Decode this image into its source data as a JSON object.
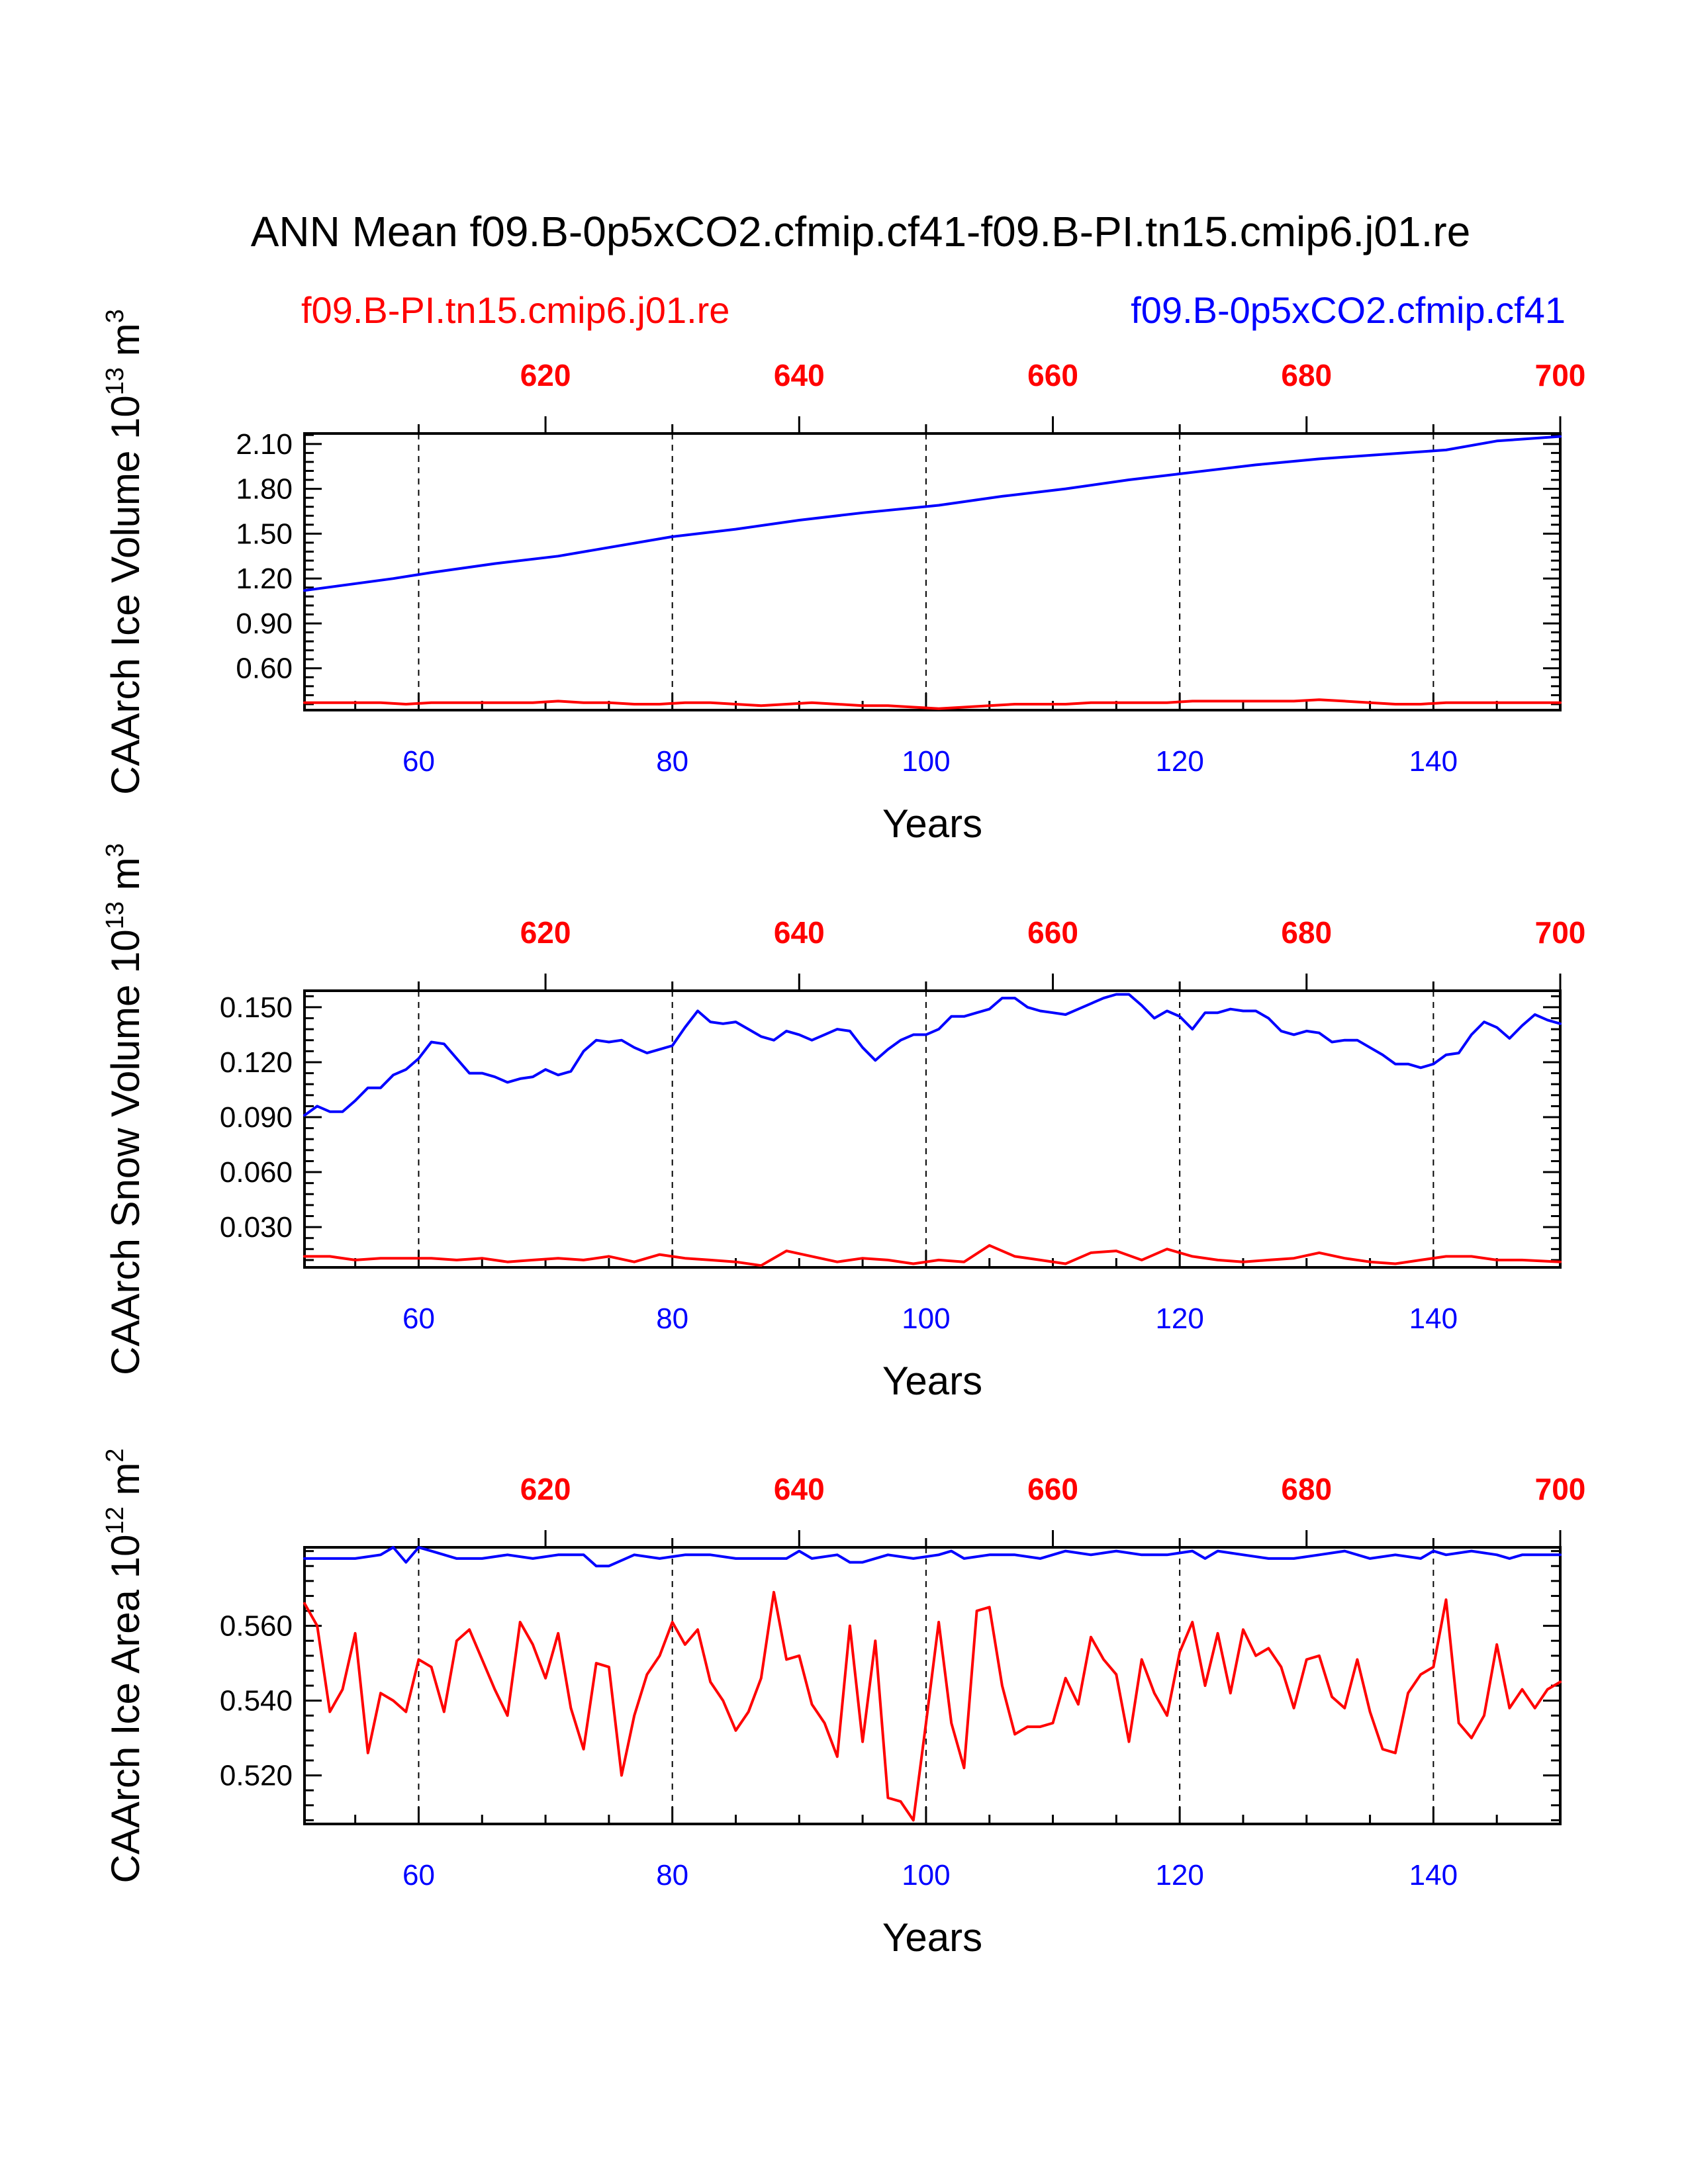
{
  "title": "ANN Mean f09.B-0p5xCO2.cfmip.cf41-f09.B-PI.tn15.cmip6.j01.re",
  "legend": {
    "left": "f09.B-PI.tn15.cmip6.j01.re",
    "right": "f09.B-0p5xCO2.cfmip.cf41"
  },
  "colors": {
    "control": "#ff0000",
    "experiment": "#0000ff",
    "axis": "#000000",
    "background": "#ffffff"
  },
  "chart_data": [
    {
      "type": "line",
      "name": "ice-volume",
      "ylabel": "CAArch Ice Volume 10^13 m^3",
      "ylabel_base": "CAArch Ice Volume 10",
      "ylabel_exp": "13",
      "ylabel_unit": " m",
      "ylabel_unit_exp": "3",
      "xlabel": "Years",
      "xlim": [
        51,
        150
      ],
      "ylim": [
        0.32,
        2.17
      ],
      "x_ticks": [
        60,
        80,
        100,
        120,
        140
      ],
      "x_tick_labels": [
        "60",
        "80",
        "100",
        "120",
        "140"
      ],
      "top_ticks": [
        620,
        640,
        660,
        680,
        700
      ],
      "top_tick_labels": [
        "620",
        "640",
        "660",
        "680",
        "700"
      ],
      "top_xlim": [
        601,
        700
      ],
      "y_ticks": [
        0.6,
        0.9,
        1.2,
        1.5,
        1.8,
        2.1
      ],
      "y_tick_labels": [
        "0.60",
        "0.90",
        "1.20",
        "1.50",
        "1.80",
        "2.10"
      ],
      "series": [
        {
          "name": "f09.B-0p5xCO2.cfmip.cf41",
          "color": "#0000ff",
          "x": [
            51,
            58,
            61,
            66,
            71,
            80,
            85,
            90,
            95,
            101,
            106,
            111,
            116,
            121,
            126,
            131,
            136,
            141,
            145,
            150
          ],
          "y": [
            1.12,
            1.2,
            1.24,
            1.3,
            1.35,
            1.48,
            1.53,
            1.59,
            1.64,
            1.69,
            1.75,
            1.8,
            1.86,
            1.91,
            1.96,
            2.0,
            2.03,
            2.06,
            2.12,
            2.15
          ]
        },
        {
          "name": "f09.B-PI.tn15.cmip6.j01.re",
          "color": "#ff0000",
          "x": [
            51,
            53,
            55,
            57,
            59,
            61,
            63,
            65,
            67,
            69,
            71,
            73,
            75,
            77,
            79,
            81,
            83,
            85,
            87,
            89,
            91,
            93,
            95,
            97,
            99,
            101,
            103,
            105,
            107,
            109,
            111,
            113,
            115,
            117,
            119,
            121,
            123,
            125,
            127,
            129,
            131,
            133,
            135,
            137,
            139,
            141,
            143,
            145,
            147,
            150
          ],
          "y": [
            0.37,
            0.37,
            0.37,
            0.37,
            0.36,
            0.37,
            0.37,
            0.37,
            0.37,
            0.37,
            0.38,
            0.37,
            0.37,
            0.36,
            0.36,
            0.37,
            0.37,
            0.36,
            0.35,
            0.36,
            0.37,
            0.36,
            0.35,
            0.35,
            0.34,
            0.33,
            0.34,
            0.35,
            0.36,
            0.36,
            0.36,
            0.37,
            0.37,
            0.37,
            0.37,
            0.38,
            0.38,
            0.38,
            0.38,
            0.38,
            0.39,
            0.38,
            0.37,
            0.36,
            0.36,
            0.37,
            0.37,
            0.37,
            0.37,
            0.37
          ]
        }
      ]
    },
    {
      "type": "line",
      "name": "snow-volume",
      "ylabel": "CAArch Snow Volume 10^13 m^3",
      "ylabel_base": "CAArch Snow Volume 10",
      "ylabel_exp": "13",
      "ylabel_unit": " m",
      "ylabel_unit_exp": "3",
      "xlabel": "Years",
      "xlim": [
        51,
        150
      ],
      "ylim": [
        0.008,
        0.159
      ],
      "x_ticks": [
        60,
        80,
        100,
        120,
        140
      ],
      "x_tick_labels": [
        "60",
        "80",
        "100",
        "120",
        "140"
      ],
      "top_ticks": [
        620,
        640,
        660,
        680,
        700
      ],
      "top_tick_labels": [
        "620",
        "640",
        "660",
        "680",
        "700"
      ],
      "top_xlim": [
        601,
        700
      ],
      "y_ticks": [
        0.03,
        0.06,
        0.09,
        0.12,
        0.15
      ],
      "y_tick_labels": [
        "0.030",
        "0.060",
        "0.090",
        "0.120",
        "0.150"
      ],
      "series": [
        {
          "name": "f09.B-0p5xCO2.cfmip.cf41",
          "color": "#0000ff",
          "x": [
            51,
            52,
            53,
            54,
            55,
            56,
            57,
            58,
            59,
            60,
            61,
            62,
            63,
            64,
            65,
            66,
            67,
            68,
            69,
            70,
            71,
            72,
            73,
            74,
            75,
            76,
            77,
            78,
            79,
            80,
            81,
            82,
            83,
            84,
            85,
            86,
            87,
            88,
            89,
            90,
            91,
            92,
            93,
            94,
            95,
            96,
            97,
            98,
            99,
            100,
            101,
            102,
            103,
            104,
            105,
            106,
            107,
            108,
            109,
            110,
            111,
            112,
            113,
            114,
            115,
            116,
            117,
            118,
            119,
            120,
            121,
            122,
            123,
            124,
            125,
            126,
            127,
            128,
            129,
            130,
            131,
            132,
            133,
            134,
            135,
            136,
            137,
            138,
            139,
            140,
            141,
            142,
            143,
            144,
            145,
            146,
            147,
            148,
            149,
            150
          ],
          "y": [
            0.091,
            0.096,
            0.093,
            0.093,
            0.099,
            0.106,
            0.106,
            0.113,
            0.116,
            0.122,
            0.131,
            0.13,
            0.122,
            0.114,
            0.114,
            0.112,
            0.109,
            0.111,
            0.112,
            0.116,
            0.113,
            0.115,
            0.126,
            0.132,
            0.131,
            0.132,
            0.128,
            0.125,
            0.127,
            0.129,
            0.139,
            0.148,
            0.142,
            0.141,
            0.142,
            0.138,
            0.134,
            0.132,
            0.137,
            0.135,
            0.132,
            0.135,
            0.138,
            0.137,
            0.128,
            0.121,
            0.127,
            0.132,
            0.135,
            0.135,
            0.138,
            0.145,
            0.145,
            0.147,
            0.149,
            0.155,
            0.155,
            0.15,
            0.148,
            0.147,
            0.146,
            0.149,
            0.152,
            0.155,
            0.157,
            0.157,
            0.151,
            0.144,
            0.148,
            0.145,
            0.138,
            0.147,
            0.147,
            0.149,
            0.148,
            0.148,
            0.144,
            0.137,
            0.135,
            0.137,
            0.136,
            0.131,
            0.132,
            0.132,
            0.128,
            0.124,
            0.119,
            0.119,
            0.117,
            0.119,
            0.124,
            0.125,
            0.135,
            0.142,
            0.139,
            0.133,
            0.14,
            0.146,
            0.143,
            0.141
          ]
        },
        {
          "name": "f09.B-PI.tn15.cmip6.j01.re",
          "color": "#ff0000",
          "x": [
            51,
            53,
            55,
            57,
            59,
            61,
            63,
            65,
            67,
            69,
            71,
            73,
            75,
            77,
            79,
            81,
            83,
            85,
            87,
            89,
            91,
            93,
            95,
            97,
            99,
            101,
            103,
            105,
            107,
            109,
            111,
            113,
            115,
            117,
            119,
            121,
            123,
            125,
            127,
            129,
            131,
            133,
            135,
            137,
            139,
            141,
            143,
            145,
            147,
            150
          ],
          "y": [
            0.014,
            0.014,
            0.012,
            0.013,
            0.013,
            0.013,
            0.012,
            0.013,
            0.011,
            0.012,
            0.013,
            0.012,
            0.014,
            0.011,
            0.015,
            0.013,
            0.012,
            0.011,
            0.009,
            0.017,
            0.014,
            0.011,
            0.013,
            0.012,
            0.01,
            0.012,
            0.011,
            0.02,
            0.014,
            0.012,
            0.01,
            0.016,
            0.017,
            0.012,
            0.018,
            0.014,
            0.012,
            0.011,
            0.012,
            0.013,
            0.016,
            0.013,
            0.011,
            0.01,
            0.012,
            0.014,
            0.014,
            0.012,
            0.012,
            0.011
          ]
        }
      ]
    },
    {
      "type": "line",
      "name": "ice-area",
      "ylabel": "CAArch Ice Area 10^12 m^2",
      "ylabel_base": "CAArch Ice Area 10",
      "ylabel_exp": "12",
      "ylabel_unit": " m",
      "ylabel_unit_exp": "2",
      "xlabel": "Years",
      "xlim": [
        51,
        150
      ],
      "ylim": [
        0.507,
        0.581
      ],
      "x_ticks": [
        60,
        80,
        100,
        120,
        140
      ],
      "x_tick_labels": [
        "60",
        "80",
        "100",
        "120",
        "140"
      ],
      "top_ticks": [
        620,
        640,
        660,
        680,
        700
      ],
      "top_tick_labels": [
        "620",
        "640",
        "660",
        "680",
        "700"
      ],
      "top_xlim": [
        601,
        700
      ],
      "y_ticks": [
        0.52,
        0.54,
        0.56
      ],
      "y_tick_labels": [
        "0.520",
        "0.540",
        "0.560"
      ],
      "series": [
        {
          "name": "f09.B-0p5xCO2.cfmip.cf41",
          "color": "#0000ff",
          "x": [
            51,
            53,
            55,
            57,
            58,
            59,
            60,
            61,
            63,
            65,
            67,
            69,
            71,
            73,
            74,
            75,
            77,
            79,
            81,
            83,
            85,
            87,
            89,
            90,
            91,
            93,
            94,
            95,
            97,
            99,
            101,
            102,
            103,
            105,
            107,
            109,
            111,
            113,
            115,
            117,
            119,
            121,
            122,
            123,
            125,
            127,
            129,
            131,
            133,
            135,
            137,
            139,
            140,
            141,
            143,
            145,
            146,
            147,
            149,
            150
          ],
          "y": [
            0.578,
            0.578,
            0.578,
            0.579,
            0.581,
            0.577,
            0.581,
            0.58,
            0.578,
            0.578,
            0.579,
            0.578,
            0.579,
            0.579,
            0.576,
            0.576,
            0.579,
            0.578,
            0.579,
            0.579,
            0.578,
            0.578,
            0.578,
            0.58,
            0.578,
            0.579,
            0.577,
            0.577,
            0.579,
            0.578,
            0.579,
            0.58,
            0.578,
            0.579,
            0.579,
            0.578,
            0.58,
            0.579,
            0.58,
            0.579,
            0.579,
            0.58,
            0.578,
            0.58,
            0.579,
            0.578,
            0.578,
            0.579,
            0.58,
            0.578,
            0.579,
            0.578,
            0.58,
            0.579,
            0.58,
            0.579,
            0.578,
            0.579,
            0.579,
            0.579
          ]
        },
        {
          "name": "f09.B-PI.tn15.cmip6.j01.re",
          "color": "#ff0000",
          "x": [
            51,
            52,
            53,
            54,
            55,
            56,
            57,
            58,
            59,
            60,
            61,
            62,
            63,
            64,
            65,
            66,
            67,
            68,
            69,
            70,
            71,
            72,
            73,
            74,
            75,
            76,
            77,
            78,
            79,
            80,
            81,
            82,
            83,
            84,
            85,
            86,
            87,
            88,
            89,
            90,
            91,
            92,
            93,
            94,
            95,
            96,
            97,
            98,
            99,
            100,
            101,
            102,
            103,
            104,
            105,
            106,
            107,
            108,
            109,
            110,
            111,
            112,
            113,
            114,
            115,
            116,
            117,
            118,
            119,
            120,
            121,
            122,
            123,
            124,
            125,
            126,
            127,
            128,
            129,
            130,
            131,
            132,
            133,
            134,
            135,
            136,
            137,
            138,
            139,
            140,
            141,
            142,
            143,
            144,
            145,
            146,
            147,
            148,
            149,
            150
          ],
          "y": [
            0.566,
            0.56,
            0.537,
            0.543,
            0.558,
            0.526,
            0.542,
            0.54,
            0.537,
            0.551,
            0.549,
            0.537,
            0.556,
            0.559,
            0.551,
            0.543,
            0.536,
            0.561,
            0.555,
            0.546,
            0.558,
            0.538,
            0.527,
            0.55,
            0.549,
            0.52,
            0.536,
            0.547,
            0.552,
            0.561,
            0.555,
            0.559,
            0.545,
            0.54,
            0.532,
            0.537,
            0.546,
            0.569,
            0.551,
            0.552,
            0.539,
            0.534,
            0.525,
            0.56,
            0.529,
            0.556,
            0.514,
            0.513,
            0.508,
            0.534,
            0.561,
            0.534,
            0.522,
            0.564,
            0.565,
            0.544,
            0.531,
            0.533,
            0.533,
            0.534,
            0.546,
            0.539,
            0.557,
            0.551,
            0.547,
            0.529,
            0.551,
            0.542,
            0.536,
            0.553,
            0.561,
            0.544,
            0.558,
            0.542,
            0.559,
            0.552,
            0.554,
            0.549,
            0.538,
            0.551,
            0.552,
            0.541,
            0.538,
            0.551,
            0.537,
            0.527,
            0.526,
            0.542,
            0.547,
            0.549,
            0.567,
            0.534,
            0.53,
            0.536,
            0.555,
            0.538,
            0.543,
            0.538,
            0.543,
            0.545
          ]
        }
      ]
    }
  ]
}
